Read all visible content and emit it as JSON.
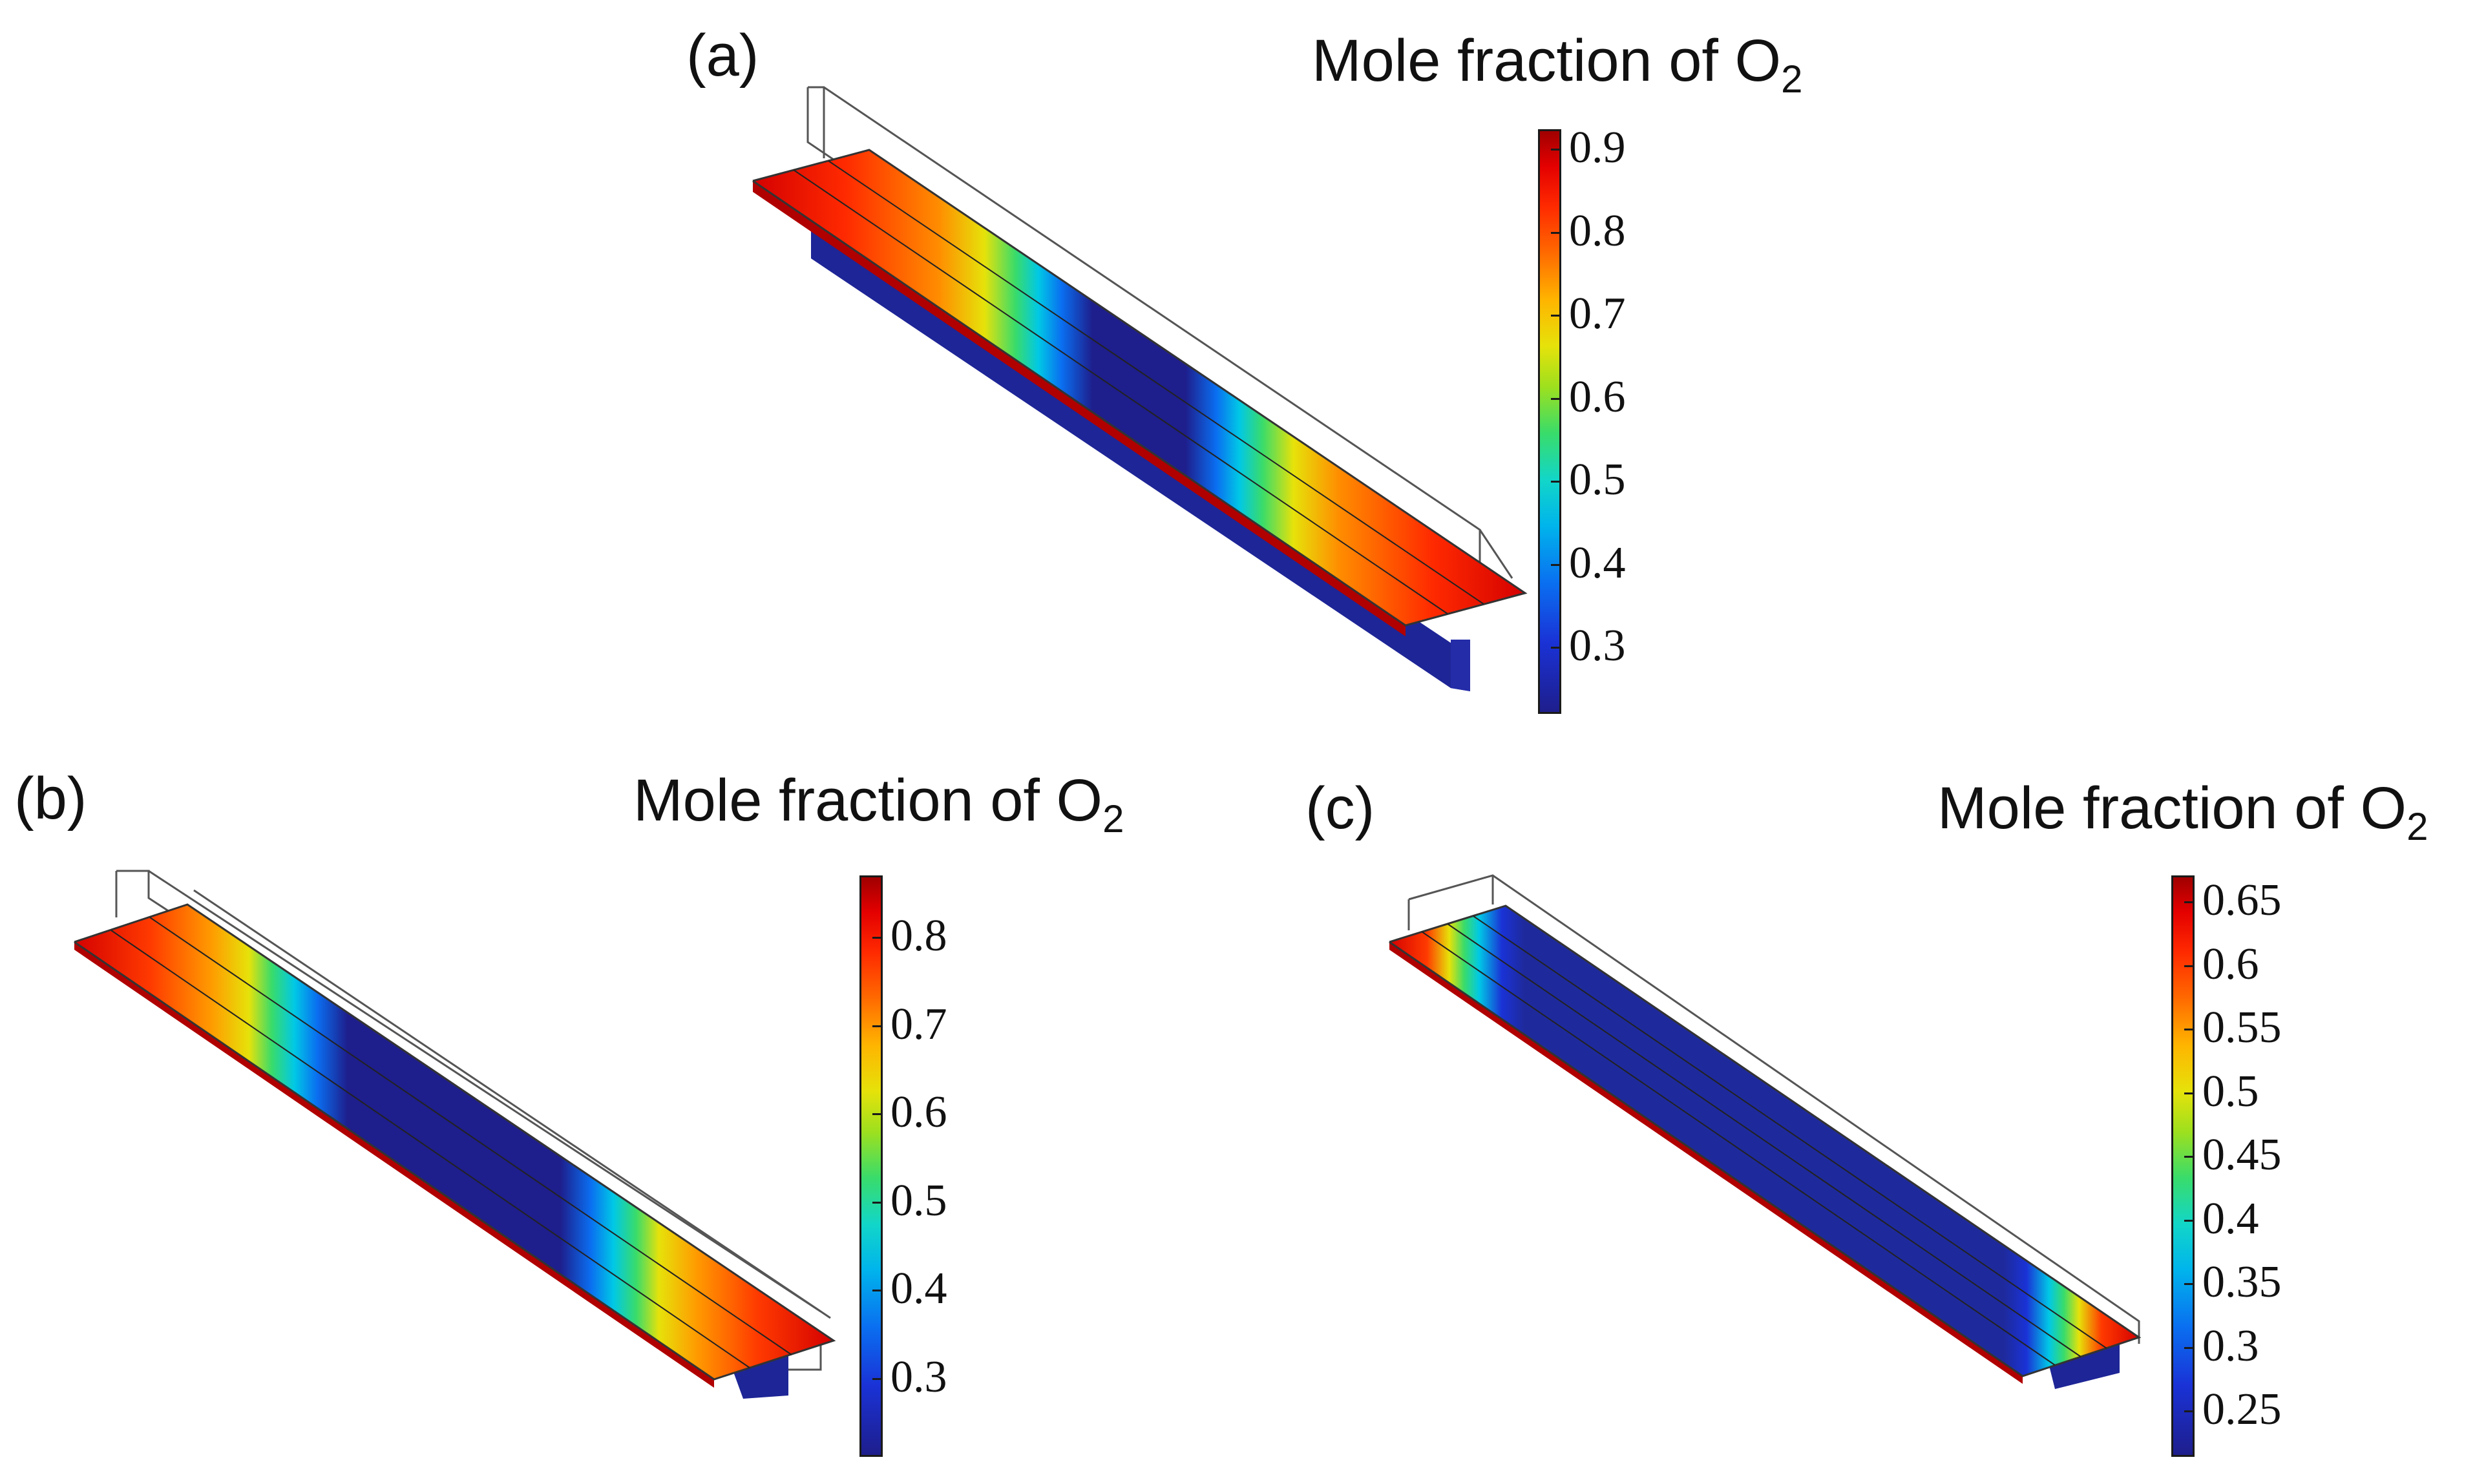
{
  "figure": {
    "panels": [
      {
        "label": "(a)",
        "colorbar_title": "Mole fraction of O",
        "colorbar_title_sub": "2",
        "ticks": [
          "0.9",
          "0.8",
          "0.7",
          "0.6",
          "0.5",
          "0.4",
          "0.3"
        ]
      },
      {
        "label": "(b)",
        "colorbar_title": "Mole fraction of O",
        "colorbar_title_sub": "2",
        "ticks": [
          "0.8",
          "0.7",
          "0.6",
          "0.5",
          "0.4",
          "0.3"
        ]
      },
      {
        "label": "(c)",
        "colorbar_title": "Mole fraction of O",
        "colorbar_title_sub": "2",
        "ticks": [
          "0.65",
          "0.6",
          "0.55",
          "0.5",
          "0.45",
          "0.4",
          "0.35",
          "0.3",
          "0.25"
        ]
      }
    ],
    "colormap": [
      "#1e1e8c",
      "#1a32d6",
      "#0a6ef0",
      "#00b4ec",
      "#39dc6a",
      "#e6e20a",
      "#ff6a00",
      "#e40000",
      "#a00000"
    ]
  }
}
